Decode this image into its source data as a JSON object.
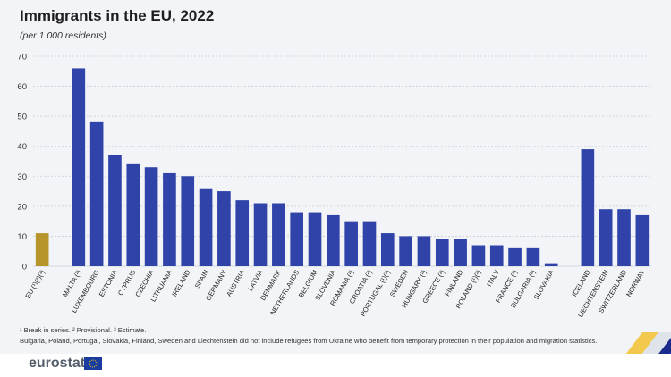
{
  "title": "Immigrants in the EU, 2022",
  "subtitle": "(per 1 000 residents)",
  "footnote1": "¹ Break in series. ² Provisional. ³ Estimate.",
  "footnote2": "Bulgaria, Poland, Portugal, Slovakia, Finland, Sweden and Liechtenstein did not include refugees from Ukraine who benefit from temporary protection in their population and migration statistics.",
  "logo": "eurostat",
  "colors": {
    "eu": "#b8952a",
    "country": "#2f43a8",
    "grid": "#c9ccd2",
    "panel": "#f2f4f7"
  },
  "chart_data": {
    "type": "bar",
    "ylim": [
      0,
      70
    ],
    "yticks": [
      0,
      10,
      20,
      30,
      40,
      50,
      60,
      70
    ],
    "categories": [
      "EU (¹)(²)(³)",
      "",
      "MALTA (²)",
      "LUXEMBOURG",
      "ESTONIA",
      "CYPRUS",
      "CZECHIA",
      "LITHUANIA",
      "IRELAND",
      "SPAIN",
      "GERMANY",
      "AUSTRIA",
      "LATVIA",
      "DENMARK",
      "NETHERLANDS",
      "BELGIUM",
      "SLOVENIA",
      "ROMANIA (²)",
      "CROATIA (²)",
      "PORTUGAL (¹)(²)",
      "SWEDEN",
      "HUNGARY (²)",
      "GREECE (²)",
      "FINLAND",
      "POLAND (¹)(²)",
      "ITALY",
      "FRANCE (²)",
      "BULGARIA (²)",
      "SLOVAKIA",
      "",
      "ICELAND",
      "LIECHTENSTEIN",
      "SWITZERLAND",
      "NORWAY"
    ],
    "values": [
      11,
      null,
      66,
      48,
      37,
      34,
      33,
      31,
      30,
      26,
      25,
      22,
      21,
      21,
      18,
      18,
      17,
      15,
      15,
      11,
      10,
      10,
      9,
      9,
      7,
      7,
      6,
      6,
      1,
      null,
      39,
      19,
      19,
      17
    ],
    "highlight": [
      "EU (¹)(²)(³)"
    ]
  }
}
